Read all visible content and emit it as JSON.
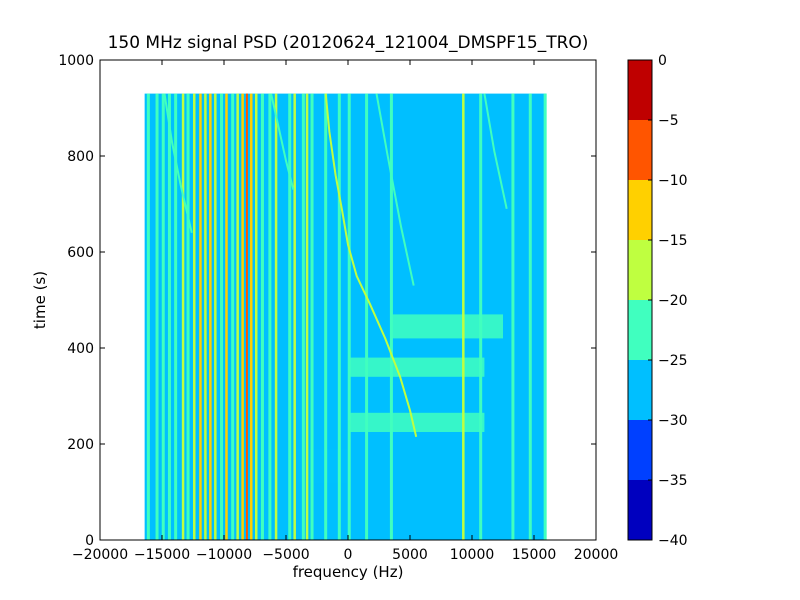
{
  "chart_data": {
    "type": "heatmap",
    "title": "150 MHz signal PSD (20120624_121004_DMSPF15_TRO)",
    "xlabel": "frequency (Hz)",
    "ylabel": "time (s)",
    "xlim": [
      -20000,
      20000
    ],
    "ylim": [
      0,
      1000
    ],
    "x_ticks": [
      -20000,
      -15000,
      -10000,
      -5000,
      0,
      5000,
      10000,
      15000,
      20000
    ],
    "x_tick_labels": [
      "−20000",
      "−15000",
      "−10000",
      "−5000",
      "0",
      "5000",
      "10000",
      "15000",
      "20000"
    ],
    "y_ticks": [
      0,
      200,
      400,
      600,
      800,
      1000
    ],
    "y_tick_labels": [
      "0",
      "200",
      "400",
      "600",
      "800",
      "1000"
    ],
    "data_extent": {
      "x": [
        -16400,
        16000
      ],
      "y": [
        0,
        930
      ]
    },
    "colorbar": {
      "levels": [
        -40,
        -35,
        -30,
        -25,
        -20,
        -15,
        -10,
        -5,
        0
      ],
      "tick_labels": [
        "−40",
        "−35",
        "−30",
        "−25",
        "−20",
        "−15",
        "−10",
        "−5",
        "0"
      ],
      "colors": [
        "#0000bf",
        "#0040ff",
        "#00bfff",
        "#40ffbf",
        "#bfff40",
        "#ffd000",
        "#ff5500",
        "#bf0000"
      ]
    },
    "background_level": -27.5,
    "vertical_lines": [
      {
        "x": -16100,
        "level": -22.5
      },
      {
        "x": -15400,
        "level": -22.5
      },
      {
        "x": -14900,
        "level": -22.5
      },
      {
        "x": -14400,
        "level": -22.5
      },
      {
        "x": -13900,
        "level": -22.5
      },
      {
        "x": -13300,
        "level": -17.5
      },
      {
        "x": -12900,
        "level": -22.5
      },
      {
        "x": -12400,
        "level": -17.5
      },
      {
        "x": -11900,
        "level": -12.5
      },
      {
        "x": -11500,
        "level": -17.5
      },
      {
        "x": -11100,
        "level": -12.5
      },
      {
        "x": -10700,
        "level": -17.5
      },
      {
        "x": -10200,
        "level": -22.5
      },
      {
        "x": -9800,
        "level": -12.5
      },
      {
        "x": -9300,
        "level": -22.5
      },
      {
        "x": -8900,
        "level": -17.5
      },
      {
        "x": -8500,
        "level": -12.5
      },
      {
        "x": -8150,
        "level": -7.5
      },
      {
        "x": -7800,
        "level": -12.5
      },
      {
        "x": -7400,
        "level": -17.5
      },
      {
        "x": -6900,
        "level": -22.5
      },
      {
        "x": -6300,
        "level": -22.5
      },
      {
        "x": -5800,
        "level": -17.5
      },
      {
        "x": -4700,
        "level": -22.5
      },
      {
        "x": -4300,
        "level": -17.5
      },
      {
        "x": -3600,
        "level": -22.5
      },
      {
        "x": -3300,
        "level": -17.5
      },
      {
        "x": -2900,
        "level": -22.5
      },
      {
        "x": -1800,
        "level": -22.5
      },
      {
        "x": -700,
        "level": -22.5
      },
      {
        "x": 100,
        "level": -22.5
      },
      {
        "x": 1500,
        "level": -22.5
      },
      {
        "x": 3500,
        "level": -22.5
      },
      {
        "x": 9300,
        "level": -17.5
      },
      {
        "x": 10700,
        "level": -22.5
      },
      {
        "x": 13300,
        "level": -22.5
      },
      {
        "x": 14700,
        "level": -22.5
      },
      {
        "x": 15900,
        "level": -22.5
      }
    ],
    "horizontal_bands": [
      {
        "y_from": 225,
        "y_to": 265,
        "x_from": 0,
        "x_to": 11000,
        "level": -22.5
      },
      {
        "y_from": 340,
        "y_to": 380,
        "x_from": 0,
        "x_to": 11000,
        "level": -22.5
      },
      {
        "y_from": 420,
        "y_to": 470,
        "x_from": 3500,
        "x_to": 12500,
        "level": -22.5
      },
      {
        "y_from": 120,
        "y_to": 190,
        "x_from": -4000,
        "x_to": 0,
        "level": -27.5
      }
    ],
    "doppler_curves": [
      {
        "level": -17.5,
        "points": [
          [
            -1800,
            930
          ],
          [
            -1500,
            850
          ],
          [
            -1000,
            760
          ],
          [
            -500,
            690
          ],
          [
            0,
            615
          ],
          [
            700,
            550
          ],
          [
            1800,
            490
          ],
          [
            3000,
            420
          ],
          [
            4200,
            340
          ],
          [
            5000,
            270
          ],
          [
            5500,
            215
          ]
        ]
      },
      {
        "level": -22.5,
        "points": [
          [
            2300,
            930
          ],
          [
            3200,
            800
          ],
          [
            4300,
            650
          ],
          [
            5300,
            530
          ]
        ]
      },
      {
        "level": -22.5,
        "points": [
          [
            -14800,
            930
          ],
          [
            -14200,
            830
          ],
          [
            -13500,
            740
          ],
          [
            -12600,
            640
          ]
        ]
      },
      {
        "level": -22.5,
        "points": [
          [
            -6200,
            930
          ],
          [
            -5600,
            860
          ],
          [
            -5000,
            790
          ],
          [
            -4400,
            730
          ]
        ]
      },
      {
        "level": -22.5,
        "points": [
          [
            11000,
            930
          ],
          [
            11800,
            810
          ],
          [
            12800,
            690
          ]
        ]
      }
    ]
  }
}
